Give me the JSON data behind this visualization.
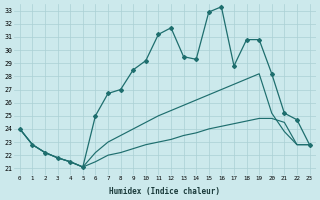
{
  "xlabel": "Humidex (Indice chaleur)",
  "x_ticks": [
    0,
    1,
    2,
    3,
    4,
    5,
    6,
    7,
    8,
    9,
    10,
    11,
    12,
    13,
    14,
    15,
    16,
    17,
    18,
    19,
    20,
    21,
    22,
    23
  ],
  "y_ticks": [
    21,
    22,
    23,
    24,
    25,
    26,
    27,
    28,
    29,
    30,
    31,
    32,
    33
  ],
  "xlim": [
    -0.5,
    23.5
  ],
  "ylim": [
    20.5,
    33.5
  ],
  "bg_color": "#cce9ec",
  "grid_color": "#aad0d5",
  "line_color": "#1e6e6e",
  "series1_x": [
    0,
    1,
    2,
    3,
    4,
    5,
    6,
    7,
    8,
    9,
    10,
    11,
    12,
    13,
    14,
    15,
    16,
    17,
    18,
    19,
    20,
    21,
    22,
    23
  ],
  "series1_y": [
    24.0,
    22.8,
    22.2,
    21.8,
    21.5,
    21.1,
    25.0,
    26.7,
    27.0,
    28.5,
    29.2,
    31.2,
    31.7,
    29.5,
    29.3,
    32.9,
    33.3,
    28.8,
    30.8,
    30.8,
    28.2,
    25.2,
    24.7,
    22.8
  ],
  "series2_x": [
    0,
    1,
    2,
    3,
    4,
    5,
    6,
    7,
    8,
    9,
    10,
    11,
    12,
    13,
    14,
    15,
    16,
    17,
    18,
    19,
    20,
    21,
    22,
    23
  ],
  "series2_y": [
    24.0,
    22.8,
    22.2,
    21.8,
    21.5,
    21.1,
    22.2,
    23.0,
    23.5,
    24.0,
    24.5,
    25.0,
    25.4,
    25.8,
    26.2,
    26.6,
    27.0,
    27.4,
    27.8,
    28.2,
    25.2,
    23.8,
    22.8,
    22.8
  ],
  "series3_x": [
    0,
    1,
    2,
    3,
    4,
    5,
    6,
    7,
    8,
    9,
    10,
    11,
    12,
    13,
    14,
    15,
    16,
    17,
    18,
    19,
    20,
    21,
    22,
    23
  ],
  "series3_y": [
    24.0,
    22.8,
    22.2,
    21.8,
    21.5,
    21.1,
    21.5,
    22.0,
    22.2,
    22.5,
    22.8,
    23.0,
    23.2,
    23.5,
    23.7,
    24.0,
    24.2,
    24.4,
    24.6,
    24.8,
    24.8,
    24.5,
    22.8,
    22.8
  ]
}
